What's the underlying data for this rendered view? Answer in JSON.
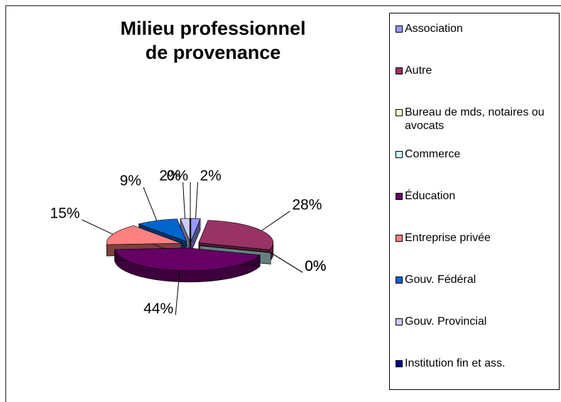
{
  "chart_data": {
    "type": "pie3d",
    "title": [
      "Milieu professionnel",
      "de provenance"
    ],
    "categories": [
      "Association",
      "Autre",
      "Bureau de mds, notaires ou avocats",
      "Commerce",
      "Éducation",
      "Entreprise privée",
      "Gouv. Fédéral",
      "Gouv. Provincial",
      "Institution fin et ass."
    ],
    "values": [
      2,
      28,
      0,
      0,
      44,
      15,
      9,
      2,
      0
    ],
    "value_labels": [
      "2%",
      "28%",
      "0%",
      "0%",
      "44%",
      "15%",
      "9%",
      "2%",
      "0%"
    ],
    "colors": [
      "#9999ff",
      "#993366",
      "#ffffcc",
      "#ccffff",
      "#660066",
      "#ff8080",
      "#0066cc",
      "#ccccff",
      "#000080"
    ],
    "legend": "right"
  }
}
